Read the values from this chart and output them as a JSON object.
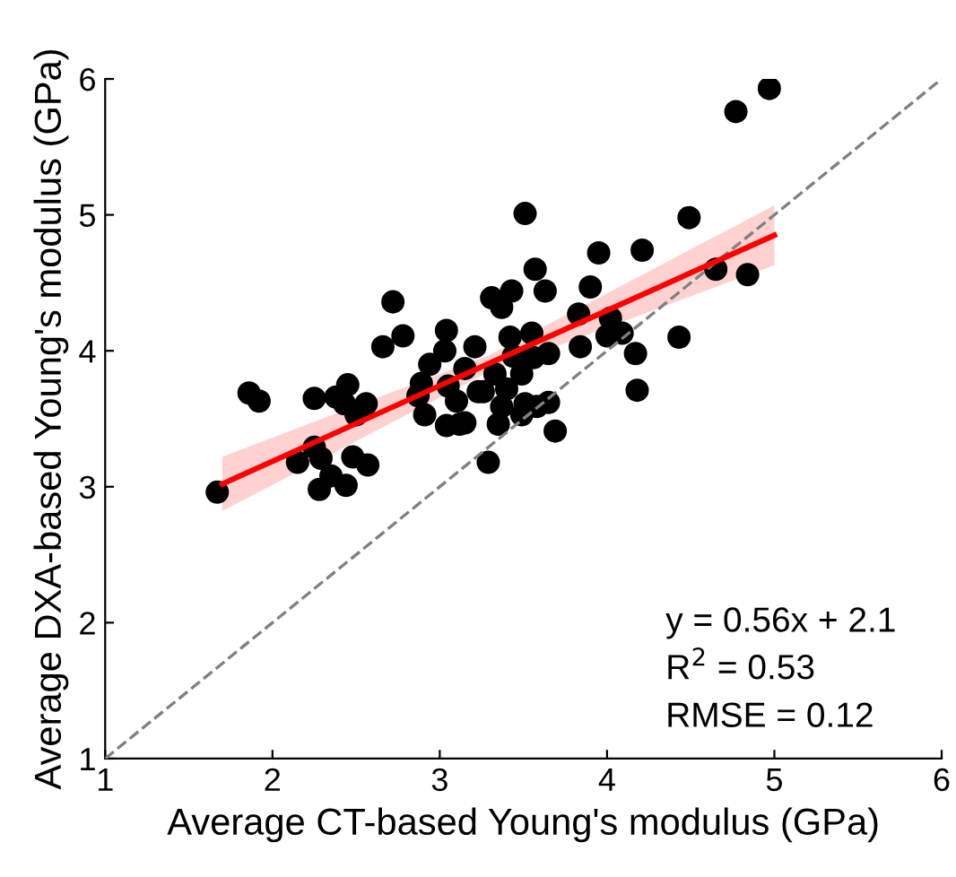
{
  "chart_data": {
    "type": "scatter",
    "xlabel": "Average CT-based Young's modulus (GPa)",
    "ylabel": "Average DXA-based Young's modulus (GPa)",
    "xlim": [
      1,
      6
    ],
    "ylim": [
      1,
      6
    ],
    "xticks": [
      1,
      2,
      3,
      4,
      5,
      6
    ],
    "yticks": [
      1,
      2,
      3,
      4,
      5,
      6
    ],
    "grid": false,
    "annotations": [
      "y = 0.56x + 2.1",
      "R$^{2}$ = 0.53",
      "RMSE = 0.12"
    ],
    "series": [
      {
        "type": "line",
        "color": "#808080",
        "line_style": "dashed",
        "marker": "none",
        "x": [
          1,
          6
        ],
        "values": [
          1,
          6
        ]
      },
      {
        "type": "scatter",
        "color": "#000000",
        "marker": "circle",
        "x": [
          1.67,
          1.86,
          1.92,
          2.15,
          2.25,
          2.29,
          2.35,
          2.28,
          2.44,
          2.48,
          2.57,
          2.25,
          2.38,
          2.45,
          2.43,
          2.56,
          2.5,
          2.66,
          2.78,
          3.04,
          3.03,
          2.94,
          2.89,
          2.87,
          2.91,
          3.05,
          3.1,
          3.04,
          3.12,
          3.15,
          3.23,
          2.72,
          3.51,
          4.49,
          3.95,
          4.21,
          3.57,
          3.31,
          3.43,
          3.37,
          3.63,
          3.9,
          3.83,
          4.02,
          4.0,
          4.09,
          4.43,
          4.17,
          4.18,
          3.84,
          3.69,
          3.29,
          4.65,
          4.84,
          3.21,
          3.42,
          3.55,
          3.65,
          3.56,
          3.44,
          3.49,
          3.33,
          3.4,
          3.26,
          3.37,
          3.35,
          3.51,
          3.65,
          3.49,
          3.58,
          3.15,
          4.97,
          4.77
        ],
        "values": [
          2.96,
          3.69,
          3.63,
          3.18,
          3.29,
          3.21,
          3.08,
          2.98,
          3.01,
          3.22,
          3.16,
          3.65,
          3.66,
          3.75,
          3.61,
          3.61,
          3.53,
          4.03,
          4.11,
          4.15,
          4.0,
          3.9,
          3.76,
          3.67,
          3.53,
          3.74,
          3.63,
          3.45,
          3.46,
          3.87,
          3.7,
          4.36,
          5.01,
          4.98,
          4.72,
          4.74,
          4.6,
          4.39,
          4.44,
          4.32,
          4.44,
          4.47,
          4.27,
          4.24,
          4.11,
          4.13,
          4.1,
          3.98,
          3.71,
          4.03,
          3.41,
          3.18,
          4.6,
          4.56,
          4.03,
          4.1,
          4.13,
          3.98,
          3.95,
          3.96,
          3.83,
          3.83,
          3.72,
          3.7,
          3.59,
          3.46,
          3.61,
          3.62,
          3.53,
          3.59,
          3.47,
          5.93,
          5.76
        ]
      },
      {
        "type": "line",
        "color": "#ff0000",
        "line_style": "solid",
        "marker": "none",
        "x": [
          1.7,
          3.3,
          5
        ],
        "values": [
          3.02,
          3.91,
          4.85
        ],
        "lower": [
          2.82,
          3.85,
          4.63
        ],
        "upper": [
          3.22,
          3.97,
          5.07
        ]
      }
    ]
  }
}
